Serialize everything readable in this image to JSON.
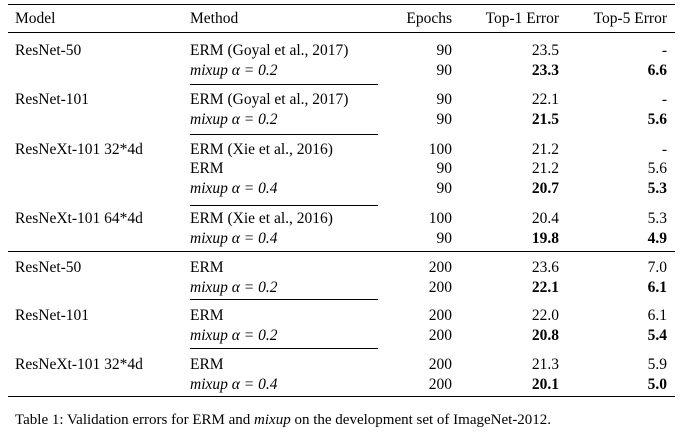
{
  "table": {
    "headers": {
      "model": "Model",
      "method": "Method",
      "epochs": "Epochs",
      "top1": "Top-1 Error",
      "top5": "Top-5 Error"
    },
    "rows": [
      {
        "model": "ResNet-50",
        "method": "ERM (Goyal et al., 2017)",
        "mixup_label": "",
        "alpha": "",
        "epochs": "90",
        "top1": "23.5",
        "top5": "-"
      },
      {
        "model": "",
        "method": "",
        "mixup_label": "mixup",
        "alpha": "α = 0.2",
        "epochs": "90",
        "top1": "23.3",
        "top5": "6.6"
      },
      {
        "model": "ResNet-101",
        "method": "ERM (Goyal et al., 2017)",
        "mixup_label": "",
        "alpha": "",
        "epochs": "90",
        "top1": "22.1",
        "top5": "-"
      },
      {
        "model": "",
        "method": "",
        "mixup_label": "mixup",
        "alpha": "α = 0.2",
        "epochs": "90",
        "top1": "21.5",
        "top5": "5.6"
      },
      {
        "model": "ResNeXt-101 32*4d",
        "method": "ERM (Xie et al., 2016)",
        "mixup_label": "",
        "alpha": "",
        "epochs": "100",
        "top1": "21.2",
        "top5": "-"
      },
      {
        "model": "",
        "method": "ERM",
        "mixup_label": "",
        "alpha": "",
        "epochs": "90",
        "top1": "21.2",
        "top5": "5.6"
      },
      {
        "model": "",
        "method": "",
        "mixup_label": "mixup",
        "alpha": "α = 0.4",
        "epochs": "90",
        "top1": "20.7",
        "top5": "5.3"
      },
      {
        "model": "ResNeXt-101 64*4d",
        "method": "ERM (Xie et al., 2016)",
        "mixup_label": "",
        "alpha": "",
        "epochs": "100",
        "top1": "20.4",
        "top5": "5.3"
      },
      {
        "model": "",
        "method": "",
        "mixup_label": "mixup",
        "alpha": "α = 0.4",
        "epochs": "90",
        "top1": "19.8",
        "top5": "4.9"
      },
      {
        "model": "ResNet-50",
        "method": "ERM",
        "mixup_label": "",
        "alpha": "",
        "epochs": "200",
        "top1": "23.6",
        "top5": "7.0"
      },
      {
        "model": "",
        "method": "",
        "mixup_label": "mixup",
        "alpha": "α = 0.2",
        "epochs": "200",
        "top1": "22.1",
        "top5": "6.1"
      },
      {
        "model": "ResNet-101",
        "method": "ERM",
        "mixup_label": "",
        "alpha": "",
        "epochs": "200",
        "top1": "22.0",
        "top5": "6.1"
      },
      {
        "model": "",
        "method": "",
        "mixup_label": "mixup",
        "alpha": "α = 0.2",
        "epochs": "200",
        "top1": "20.8",
        "top5": "5.4"
      },
      {
        "model": "ResNeXt-101 32*4d",
        "method": "ERM",
        "mixup_label": "",
        "alpha": "",
        "epochs": "200",
        "top1": "21.3",
        "top5": "5.9"
      },
      {
        "model": "",
        "method": "",
        "mixup_label": "mixup",
        "alpha": "α = 0.4",
        "epochs": "200",
        "top1": "20.1",
        "top5": "5.0"
      }
    ]
  },
  "caption": {
    "part1": "Table 1: Validation errors for ERM and ",
    "emph": "mixup",
    "part2": " on the development set of ImageNet-2012."
  }
}
